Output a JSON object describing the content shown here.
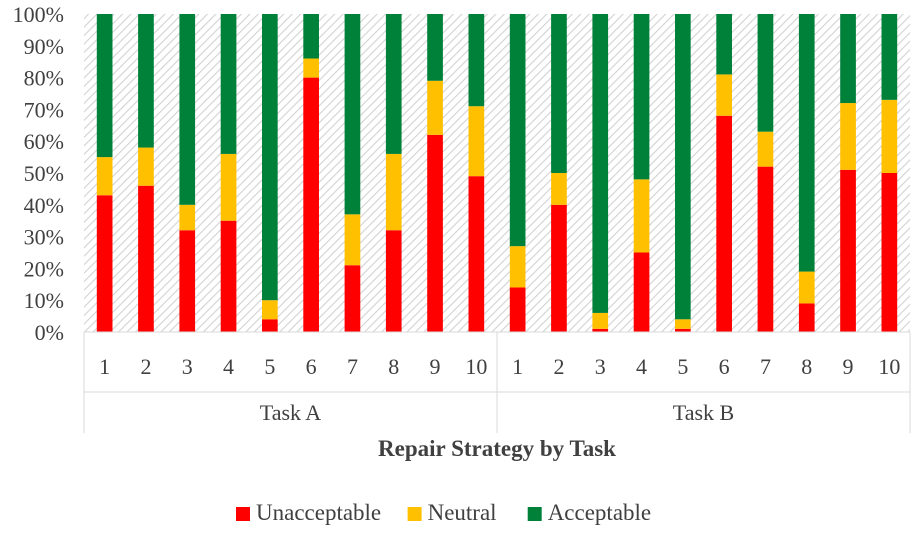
{
  "chart_data": {
    "type": "bar",
    "stacked": true,
    "percent": true,
    "title": "",
    "xlabel": "Repair Strategy by Task",
    "ylabel": "",
    "ylim": [
      0,
      100
    ],
    "yticks": [
      "0%",
      "10%",
      "20%",
      "30%",
      "40%",
      "50%",
      "60%",
      "70%",
      "80%",
      "90%",
      "100%"
    ],
    "groups": [
      {
        "name": "Task A",
        "categories": [
          "1",
          "2",
          "3",
          "4",
          "5",
          "6",
          "7",
          "8",
          "9",
          "10"
        ]
      },
      {
        "name": "Task B",
        "categories": [
          "1",
          "2",
          "3",
          "4",
          "5",
          "6",
          "7",
          "8",
          "9",
          "10"
        ]
      }
    ],
    "series": [
      {
        "name": "Unacceptable",
        "color": "#ff0000",
        "values": [
          43,
          46,
          32,
          35,
          4,
          80,
          21,
          32,
          62,
          49,
          14,
          40,
          1,
          25,
          1,
          68,
          52,
          9,
          51,
          50
        ]
      },
      {
        "name": "Neutral",
        "color": "#ffc000",
        "values": [
          12,
          12,
          8,
          21,
          6,
          6,
          16,
          24,
          17,
          22,
          13,
          10,
          5,
          23,
          3,
          13,
          11,
          10,
          21,
          23
        ]
      },
      {
        "name": "Acceptable",
        "color": "#00813a",
        "values": [
          45,
          42,
          60,
          44,
          90,
          14,
          63,
          44,
          21,
          29,
          73,
          50,
          94,
          52,
          96,
          19,
          37,
          81,
          28,
          27
        ]
      }
    ],
    "legend_position": "bottom",
    "grid": true
  }
}
